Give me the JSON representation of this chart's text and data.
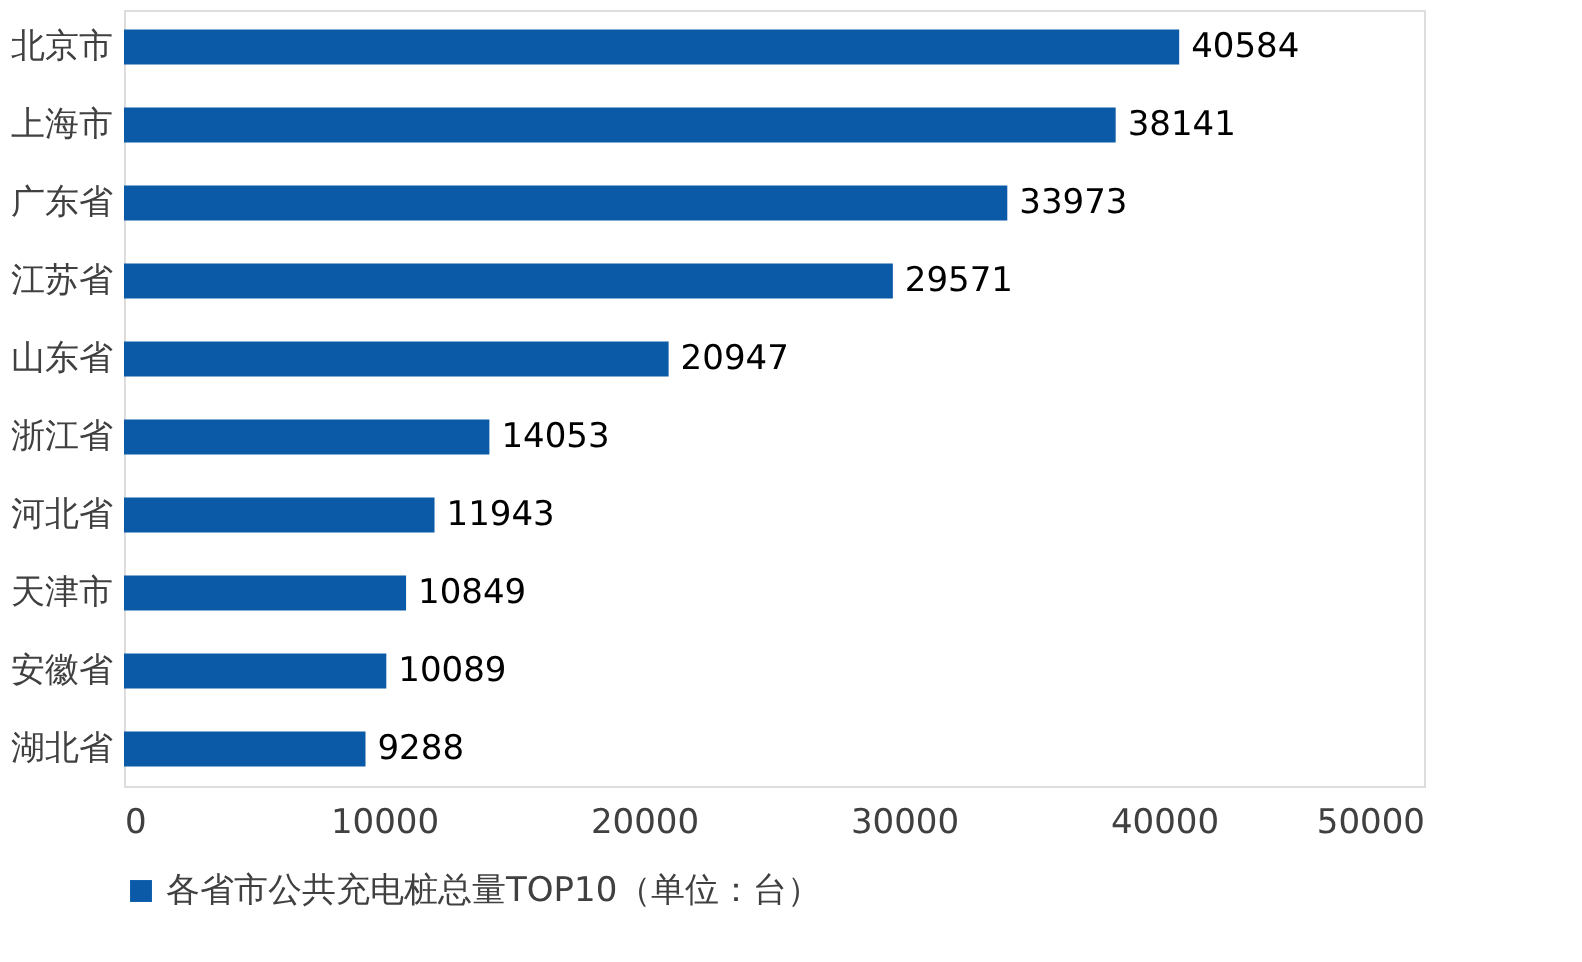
{
  "chart_data": {
    "type": "bar",
    "orientation": "horizontal",
    "categories": [
      "北京市",
      "上海市",
      "广东省",
      "江苏省",
      "山东省",
      "浙江省",
      "河北省",
      "天津市",
      "安徽省",
      "湖北省"
    ],
    "series": [
      {
        "name": "各省市公共充电桩总量TOP10（单位：台）",
        "color": "#0a5aa8",
        "values": [
          40584,
          38141,
          33973,
          29571,
          20947,
          14053,
          11943,
          10849,
          10089,
          9288
        ]
      }
    ],
    "xlim": [
      0,
      50000
    ],
    "xticks": [
      0,
      10000,
      20000,
      30000,
      40000,
      50000
    ],
    "data_labels": true,
    "grid": false,
    "legend": "bottom"
  }
}
